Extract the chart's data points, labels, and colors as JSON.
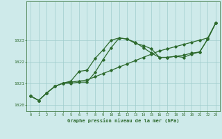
{
  "xlabel": "Graphe pression niveau de la mer (hPa)",
  "background_color": "#ceeaea",
  "grid_color": "#a0cccc",
  "line_color": "#2d6a2d",
  "x_ticks": [
    0,
    1,
    2,
    3,
    4,
    5,
    6,
    7,
    8,
    9,
    10,
    11,
    12,
    13,
    14,
    15,
    16,
    17,
    18,
    19,
    20,
    21,
    22,
    23
  ],
  "ylim": [
    1019.7,
    1024.8
  ],
  "yticks": [
    1020,
    1021,
    1022,
    1023
  ],
  "line1_x": [
    0,
    1,
    2,
    3,
    4,
    5,
    6,
    7,
    8,
    9,
    10,
    11,
    12,
    13,
    14,
    15,
    16,
    17,
    18,
    19,
    20,
    21,
    22,
    23
  ],
  "line1_y": [
    1020.4,
    1020.2,
    1020.55,
    1020.85,
    1021.0,
    1021.05,
    1021.1,
    1021.15,
    1021.3,
    1021.45,
    1021.6,
    1021.75,
    1021.9,
    1022.05,
    1022.2,
    1022.35,
    1022.5,
    1022.6,
    1022.7,
    1022.8,
    1022.9,
    1023.0,
    1023.1,
    1023.8
  ],
  "line2_x": [
    0,
    1,
    2,
    3,
    4,
    5,
    6,
    7,
    8,
    9,
    10,
    11,
    12,
    13,
    14,
    15,
    16,
    17,
    18,
    19,
    20,
    21,
    22,
    23
  ],
  "line2_y": [
    1020.4,
    1020.2,
    1020.55,
    1020.85,
    1021.0,
    1021.0,
    1021.05,
    1021.05,
    1021.5,
    1022.1,
    1022.65,
    1023.1,
    1023.05,
    1022.9,
    1022.65,
    1022.4,
    1022.2,
    1022.2,
    1022.25,
    1022.2,
    1022.35,
    1022.45,
    1023.05,
    1023.8
  ],
  "line3_x": [
    0,
    1,
    2,
    3,
    4,
    5,
    6,
    7,
    8,
    9,
    10,
    11,
    12,
    13,
    14,
    15,
    16,
    17,
    18,
    19,
    20,
    21,
    22,
    23
  ],
  "line3_y": [
    1020.4,
    1020.2,
    1020.55,
    1020.85,
    1021.0,
    1021.1,
    1021.55,
    1021.6,
    1022.15,
    1022.55,
    1023.0,
    1023.1,
    1023.05,
    1022.85,
    1022.75,
    1022.6,
    1022.2,
    1022.2,
    1022.25,
    1022.3,
    1022.4,
    1022.45,
    1023.05,
    1023.8
  ]
}
